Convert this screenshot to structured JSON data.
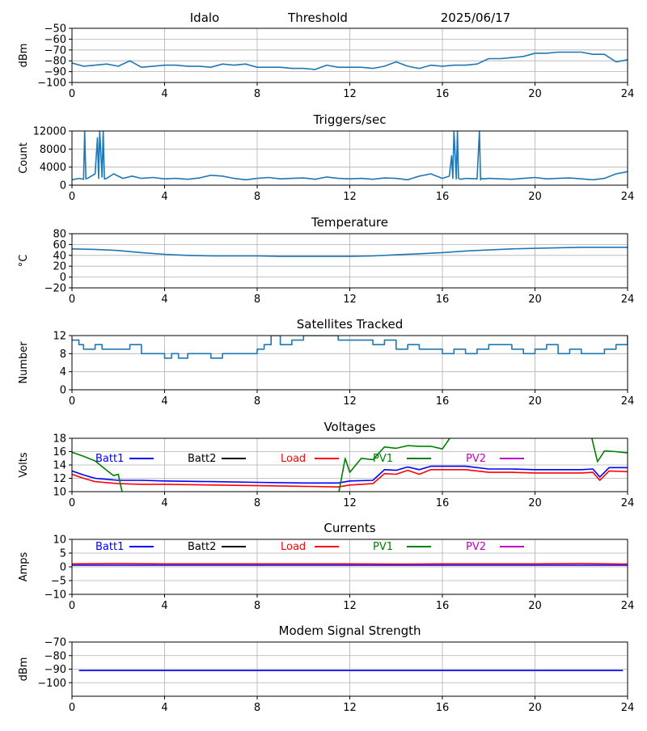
{
  "header": {
    "station": "Idalo",
    "label": "Threshold",
    "date": "2025/06/17"
  },
  "x_ticks": [
    "0",
    "4",
    "8",
    "12",
    "16",
    "20",
    "24"
  ],
  "chart_data": [
    {
      "type": "line",
      "title": "",
      "ylabel": "dBm",
      "xlim": [
        0,
        24
      ],
      "ylim": [
        -100,
        -50
      ],
      "yticks": [
        -100,
        -90,
        -80,
        -70,
        -60,
        -50
      ],
      "ytick_labels": [
        "−100",
        "−90",
        "−80",
        "−70",
        "−60",
        "−50"
      ],
      "grid": true,
      "series": [
        {
          "color": "#1f77b4",
          "x": [
            0,
            0.5,
            1,
            1.5,
            2,
            2.5,
            3,
            3.5,
            4,
            4.5,
            5,
            5.5,
            6,
            6.5,
            7,
            7.5,
            8,
            8.5,
            9,
            9.5,
            10,
            10.5,
            11,
            11.5,
            12,
            12.5,
            13,
            13.5,
            14,
            14.5,
            15,
            15.5,
            16,
            16.5,
            17,
            17.5,
            18,
            18.5,
            19,
            19.5,
            20,
            20.5,
            21,
            21.5,
            22,
            22.5,
            23,
            23.5,
            24
          ],
          "y": [
            -82,
            -85,
            -84,
            -83,
            -85,
            -80,
            -86,
            -85,
            -84,
            -84,
            -85,
            -85,
            -86,
            -83,
            -84,
            -83,
            -86,
            -86,
            -86,
            -87,
            -87,
            -88,
            -84,
            -86,
            -86,
            -86,
            -87,
            -85,
            -81,
            -85,
            -87,
            -84,
            -85,
            -84,
            -84,
            -83,
            -78,
            -78,
            -77,
            -76,
            -73,
            -73,
            -72,
            -72,
            -72,
            -74,
            -74,
            -81,
            -79
          ]
        }
      ]
    },
    {
      "type": "line",
      "title": "Triggers/sec",
      "ylabel": "Count",
      "xlim": [
        0,
        24
      ],
      "ylim": [
        0,
        12000
      ],
      "yticks": [
        0,
        4000,
        8000,
        12000
      ],
      "ytick_labels": [
        "0",
        "4000",
        "8000",
        "12000"
      ],
      "grid": true,
      "series": [
        {
          "color": "#1f77b4",
          "x": [
            0,
            0.3,
            0.5,
            0.55,
            0.6,
            0.7,
            1.0,
            1.1,
            1.15,
            1.2,
            1.3,
            1.35,
            1.4,
            1.5,
            1.8,
            2.2,
            2.6,
            3,
            3.5,
            4,
            4.5,
            5,
            5.5,
            6,
            6.5,
            7,
            7.5,
            8,
            8.5,
            9,
            9.5,
            10,
            10.5,
            11,
            11.5,
            12,
            12.5,
            13,
            13.5,
            14,
            14.5,
            15,
            15.5,
            16,
            16.3,
            16.4,
            16.45,
            16.5,
            16.6,
            16.65,
            16.7,
            16.8,
            17,
            17.5,
            17.6,
            17.65,
            17.7,
            17.8,
            18,
            18.5,
            19,
            19.5,
            20,
            20.5,
            21,
            21.5,
            22,
            22.5,
            23,
            23.5,
            24
          ],
          "y": [
            1200,
            1500,
            1300,
            12000,
            1400,
            1600,
            2500,
            10500,
            1500,
            12000,
            1800,
            12000,
            1400,
            1500,
            2500,
            1500,
            2000,
            1500,
            1700,
            1400,
            1500,
            1300,
            1600,
            2200,
            2000,
            1500,
            1200,
            1500,
            1700,
            1400,
            1500,
            1600,
            1300,
            1800,
            1500,
            1400,
            1500,
            1300,
            1600,
            1500,
            1200,
            2000,
            2500,
            1500,
            2000,
            6500,
            1500,
            12000,
            1400,
            12000,
            1500,
            1300,
            1500,
            1400,
            12000,
            1200,
            1500,
            1400,
            1500,
            1400,
            1300,
            1500,
            1700,
            1400,
            1500,
            1600,
            1400,
            1200,
            1500,
            2500,
            3000
          ]
        }
      ]
    },
    {
      "type": "line",
      "title": "Temperature",
      "ylabel": "°C",
      "xlim": [
        0,
        24
      ],
      "ylim": [
        -20,
        80
      ],
      "yticks": [
        -20,
        0,
        20,
        40,
        60,
        80
      ],
      "ytick_labels": [
        "−20",
        "0",
        "20",
        "40",
        "60",
        "80"
      ],
      "grid": true,
      "series": [
        {
          "color": "#1f77b4",
          "x": [
            0,
            1,
            2,
            3,
            4,
            5,
            6,
            7,
            8,
            9,
            10,
            11,
            12,
            13,
            14,
            15,
            16,
            17,
            18,
            19,
            20,
            21,
            22,
            23,
            24
          ],
          "y": [
            52,
            51,
            49,
            45,
            42,
            40,
            39,
            39,
            39,
            38,
            38,
            38,
            38,
            39,
            41,
            43,
            45,
            48,
            50,
            52,
            53,
            54,
            55,
            55,
            55
          ]
        }
      ]
    },
    {
      "type": "line",
      "title": "Satellites Tracked",
      "ylabel": "Number",
      "xlim": [
        0,
        24
      ],
      "ylim": [
        0,
        12
      ],
      "yticks": [
        0,
        4,
        8,
        12
      ],
      "ytick_labels": [
        "0",
        "4",
        "8",
        "12"
      ],
      "grid": true,
      "series": [
        {
          "color": "#1f77b4",
          "step": true,
          "x": [
            0,
            0.3,
            0.5,
            1,
            1.3,
            2,
            2.5,
            3,
            3.5,
            4,
            4.3,
            4.6,
            5,
            6,
            6.5,
            7,
            7.5,
            8,
            8.3,
            8.6,
            9,
            9.5,
            10,
            11,
            11.5,
            12,
            12.5,
            13,
            13.5,
            14,
            14.5,
            15,
            16,
            16.5,
            17,
            17.5,
            18,
            18.5,
            19,
            19.5,
            20,
            20.5,
            21,
            21.5,
            22,
            22.5,
            23,
            23.5,
            24
          ],
          "y": [
            11,
            10,
            9,
            10,
            9,
            9,
            10,
            8,
            8,
            7,
            8,
            7,
            8,
            7,
            8,
            8,
            8,
            9,
            10,
            12,
            10,
            11,
            12,
            12,
            11,
            11,
            11,
            10,
            11,
            9,
            10,
            9,
            8,
            9,
            8,
            9,
            10,
            10,
            9,
            8,
            9,
            10,
            8,
            9,
            8,
            8,
            9,
            10,
            12
          ]
        }
      ]
    },
    {
      "type": "line",
      "title": "Voltages",
      "ylabel": "Volts",
      "xlim": [
        0,
        24
      ],
      "ylim": [
        10,
        18
      ],
      "yticks": [
        10,
        12,
        14,
        16,
        18
      ],
      "ytick_labels": [
        "10",
        "12",
        "14",
        "16",
        "18"
      ],
      "grid": true,
      "legend": [
        "Batt1",
        "Batt2",
        "Load",
        "PV1",
        "PV2"
      ],
      "series": [
        {
          "name": "Batt1",
          "color": "#0000ff",
          "x": [
            0,
            0.5,
            1,
            2,
            3,
            4,
            6,
            8,
            10,
            11.5,
            12,
            13,
            13.5,
            14,
            14.5,
            15,
            15.5,
            16,
            17,
            18,
            19,
            20,
            21,
            22,
            22.5,
            22.8,
            23.2,
            24
          ],
          "y": [
            13.1,
            12.5,
            12,
            11.7,
            11.7,
            11.6,
            11.5,
            11.4,
            11.3,
            11.3,
            11.6,
            11.7,
            13.3,
            13.2,
            13.7,
            13.3,
            13.8,
            13.8,
            13.8,
            13.4,
            13.4,
            13.3,
            13.3,
            13.3,
            13.4,
            12.2,
            13.6,
            13.6
          ]
        },
        {
          "name": "Load",
          "color": "#ff0000",
          "x": [
            0,
            0.5,
            1,
            2,
            3,
            4,
            6,
            8,
            10,
            11.5,
            12,
            13,
            13.5,
            14,
            14.5,
            15,
            15.5,
            16,
            17,
            18,
            19,
            20,
            21,
            22,
            22.5,
            22.8,
            23.2,
            24
          ],
          "y": [
            12.6,
            12,
            11.5,
            11.2,
            11.1,
            11.1,
            11,
            10.9,
            10.8,
            10.7,
            11,
            11.2,
            12.7,
            12.6,
            13.2,
            12.6,
            13.3,
            13.3,
            13.3,
            12.9,
            12.9,
            12.8,
            12.8,
            12.8,
            12.9,
            11.7,
            13.1,
            13
          ]
        },
        {
          "name": "PV1",
          "color": "#008000",
          "x": [
            0,
            0.5,
            1,
            1.5,
            1.8,
            2.0,
            2.1,
            2.2
          ],
          "y": [
            15.9,
            15.3,
            14.6,
            13.2,
            12.4,
            12.6,
            11,
            9.4
          ]
        },
        {
          "name": "PV1",
          "color": "#008000",
          "x": [
            11.5,
            11.8,
            12.0,
            12.5,
            13.0,
            13.5,
            14.0,
            14.5,
            15.0,
            15.5,
            16.0,
            16.4,
            16.6
          ],
          "y": [
            9.4,
            15,
            12.9,
            15,
            14.8,
            16.7,
            16.5,
            16.9,
            16.8,
            16.8,
            16.4,
            18.4,
            18.8
          ]
        },
        {
          "name": "PV1",
          "color": "#008000",
          "x": [
            22.4,
            22.7,
            23.0,
            23.5,
            24
          ],
          "y": [
            18.8,
            14.5,
            16.1,
            16,
            15.8
          ]
        }
      ]
    },
    {
      "type": "line",
      "title": "Currents",
      "ylabel": "Amps",
      "xlim": [
        0,
        24
      ],
      "ylim": [
        -10,
        10
      ],
      "yticks": [
        -10,
        -5,
        0,
        5,
        10
      ],
      "ytick_labels": [
        "−10",
        "−5",
        "0",
        "5",
        "10"
      ],
      "grid": true,
      "legend": [
        "Batt1",
        "Batt2",
        "Load",
        "PV1",
        "PV2"
      ],
      "series": [
        {
          "name": "Batt1",
          "color": "#0000ff",
          "x": [
            0,
            4,
            8,
            12,
            16,
            20,
            24
          ],
          "y": [
            0.6,
            0.6,
            0.6,
            0.6,
            0.6,
            0.6,
            0.6
          ]
        },
        {
          "name": "Load",
          "color": "#ff0000",
          "x": [
            0,
            2,
            4,
            6,
            8,
            10,
            12,
            14,
            16,
            18,
            20,
            22,
            24
          ],
          "y": [
            1.1,
            1.2,
            1.1,
            1.1,
            1.1,
            1.1,
            1.1,
            1,
            1.1,
            1.1,
            1.1,
            1.2,
            1
          ]
        }
      ]
    },
    {
      "type": "line",
      "title": "Modem Signal Strength",
      "ylabel": "dBm",
      "xlim": [
        0,
        24
      ],
      "ylim": [
        -110,
        -70
      ],
      "yticks": [
        -100,
        -90,
        -80,
        -70
      ],
      "ytick_labels": [
        "−100",
        "−90",
        "−80",
        "−70"
      ],
      "grid": true,
      "series": [
        {
          "color": "#0000ff",
          "x": [
            0.3,
            23.8
          ],
          "y": [
            -91,
            -91
          ]
        }
      ]
    }
  ],
  "legend_colors": {
    "Batt1": "#0000ff",
    "Batt2": "#000000",
    "Load": "#ff0000",
    "PV1": "#008000",
    "PV2": "#c000c0"
  }
}
